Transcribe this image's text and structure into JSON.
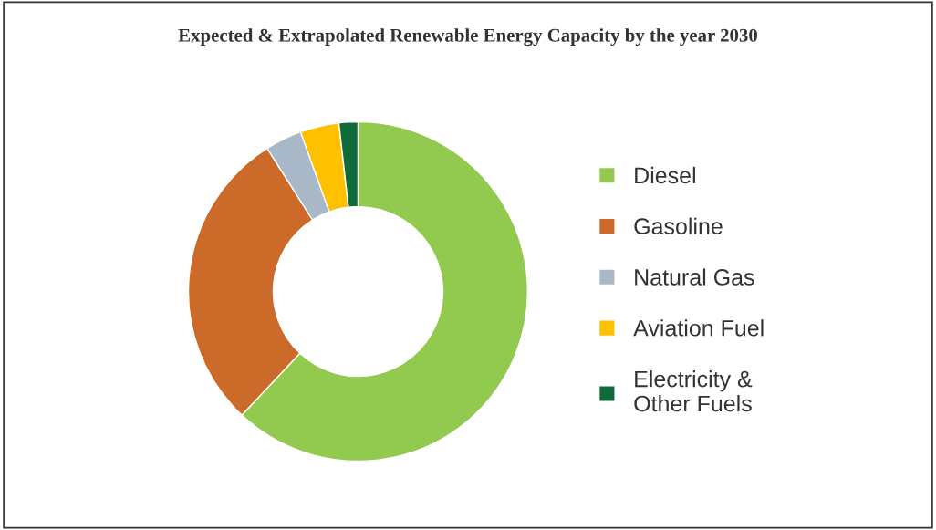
{
  "chart_data": {
    "type": "donut",
    "title": "Expected & Extrapolated Renewable Energy Capacity by the year 2030",
    "categories": [
      "Diesel",
      "Gasoline",
      "Natural Gas",
      "Aviation Fuel",
      "Electricity &\nOther Fuels"
    ],
    "values": [
      62,
      29,
      3.5,
      3.7,
      1.8
    ],
    "colors": [
      "#92c94f",
      "#cc6a2a",
      "#a9b8c8",
      "#ffc000",
      "#0f6b3a"
    ],
    "legend": "right"
  }
}
